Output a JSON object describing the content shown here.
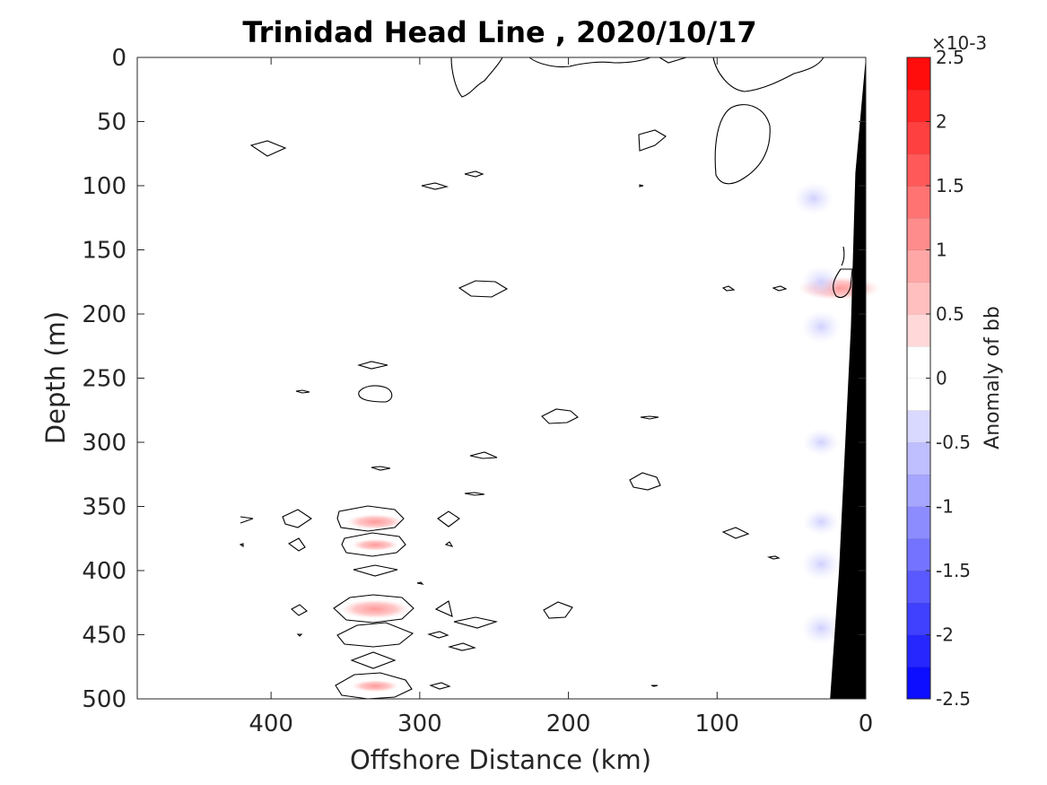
{
  "chart_data": {
    "type": "contour",
    "title": "Trinidad Head Line , 2020/10/17",
    "xlabel": "Offshore Distance (km)",
    "ylabel": "Depth (m)",
    "xlim": [
      490,
      0
    ],
    "ylim": [
      0,
      500
    ],
    "x_reversed": true,
    "y_reversed": true,
    "xticks": [
      400,
      300,
      200,
      100,
      0
    ],
    "yticks": [
      0,
      50,
      100,
      150,
      200,
      250,
      300,
      350,
      400,
      450,
      500
    ],
    "xtick_labels": [
      "400",
      "300",
      "200",
      "100",
      "0"
    ],
    "ytick_labels": [
      "0",
      "50",
      "100",
      "150",
      "200",
      "250",
      "300",
      "350",
      "400",
      "450",
      "500"
    ],
    "colorbar": {
      "label": "Anomaly of bb",
      "multiplier": "×10-3",
      "range": [
        -2.5,
        2.5
      ],
      "levels": [
        -2.5,
        -2.25,
        -2.0,
        -1.75,
        -1.5,
        -1.25,
        -1.0,
        -0.75,
        -0.5,
        -0.25,
        0,
        0.25,
        0.5,
        0.75,
        1.0,
        1.25,
        1.5,
        1.75,
        2.0,
        2.25,
        2.5
      ],
      "tick_values": [
        2.5,
        2,
        1.5,
        1,
        0.5,
        0,
        -0.5,
        -1,
        -1.5,
        -2,
        -2.5
      ],
      "tick_labels": [
        "2.5",
        "2",
        "1.5",
        "1",
        "0.5",
        "0",
        "-0.5",
        "-1",
        "-1.5",
        "-2",
        "-2.5"
      ],
      "colormap": "blue-white-red",
      "negative_color": "#0000ff",
      "positive_color": "#ff0000"
    },
    "bathymetry": {
      "color": "#000000",
      "points": [
        [
          0,
          0
        ],
        [
          7,
          90
        ],
        [
          10,
          210
        ],
        [
          18,
          400
        ],
        [
          24,
          500
        ]
      ]
    },
    "positive_anomalies": [
      {
        "x": 330,
        "depth": 362,
        "value": 0.5
      },
      {
        "x": 330,
        "depth": 380,
        "value": 0.3
      },
      {
        "x": 330,
        "depth": 430,
        "value": 0.75
      },
      {
        "x": 330,
        "depth": 490,
        "value": 0.3
      },
      {
        "x": 18,
        "depth": 180,
        "value": 1.0
      }
    ],
    "negative_anomalies": [
      {
        "x": 35,
        "depth": 110,
        "value": -0.4
      },
      {
        "x": 30,
        "depth": 175,
        "value": -0.4
      },
      {
        "x": 30,
        "depth": 210,
        "value": -0.4
      },
      {
        "x": 30,
        "depth": 300,
        "value": -0.3
      },
      {
        "x": 30,
        "depth": 362,
        "value": -0.3
      },
      {
        "x": 30,
        "depth": 395,
        "value": -0.4
      },
      {
        "x": 30,
        "depth": 445,
        "value": -0.4
      }
    ],
    "contour_level": 0
  }
}
